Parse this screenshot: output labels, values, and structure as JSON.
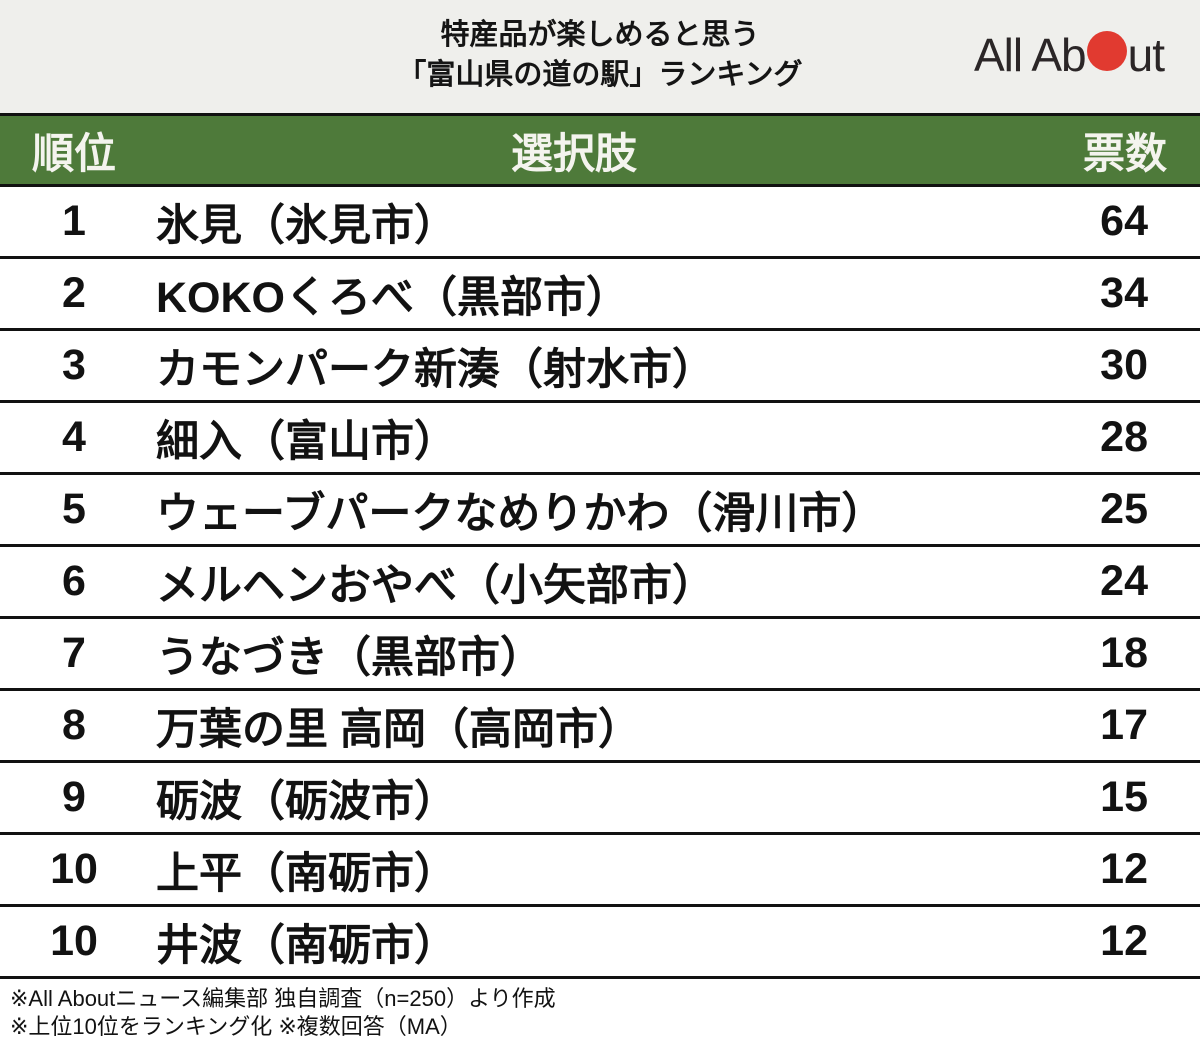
{
  "header": {
    "title_line1": "特産品が楽しめると思う",
    "title_line2": "「富山県の道の駅」ランキング",
    "logo_text_left": "All Ab",
    "logo_text_right": "ut",
    "logo_alt": "All About"
  },
  "chart_data": {
    "type": "table",
    "title": "特産品が楽しめると思う「富山県の道の駅」ランキング",
    "columns": [
      "順位",
      "選択肢",
      "票数"
    ],
    "rows": [
      {
        "rank": "1",
        "choice": "氷見（氷見市）",
        "votes": "64"
      },
      {
        "rank": "2",
        "choice": "KOKOくろべ（黒部市）",
        "votes": "34"
      },
      {
        "rank": "3",
        "choice": "カモンパーク新湊（射水市）",
        "votes": "30"
      },
      {
        "rank": "4",
        "choice": "細入（富山市）",
        "votes": "28"
      },
      {
        "rank": "5",
        "choice": "ウェーブパークなめりかわ（滑川市）",
        "votes": "25"
      },
      {
        "rank": "6",
        "choice": "メルヘンおやべ（小矢部市）",
        "votes": "24"
      },
      {
        "rank": "7",
        "choice": "うなづき（黒部市）",
        "votes": "18"
      },
      {
        "rank": "8",
        "choice": "万葉の里 高岡（高岡市）",
        "votes": "17"
      },
      {
        "rank": "9",
        "choice": "砺波（砺波市）",
        "votes": "15"
      },
      {
        "rank": "10",
        "choice": "上平（南砺市）",
        "votes": "12"
      },
      {
        "rank": "10",
        "choice": "井波（南砺市）",
        "votes": "12"
      }
    ]
  },
  "footer": {
    "note1": "※All Aboutニュース編集部 独自調査（n=250）より作成",
    "note2": "※上位10位をランキング化 ※複数回答（MA）"
  },
  "colors": {
    "top_header_bg": "#efefec",
    "table_header_bg": "#4e7a3a",
    "table_header_text": "#f4f4ee",
    "row_border": "#111111",
    "logo_red": "#e13a30",
    "text": "#111111"
  }
}
